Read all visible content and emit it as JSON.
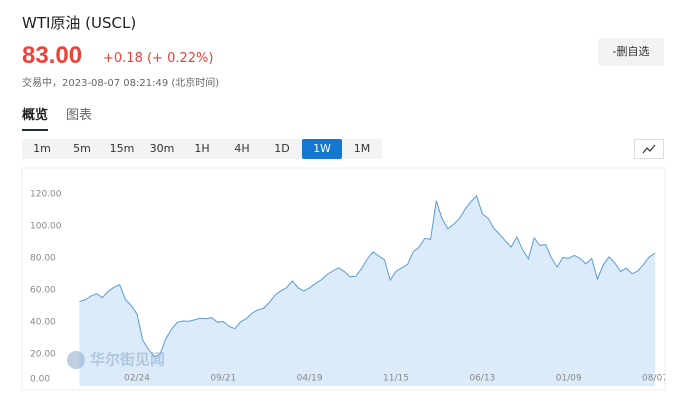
{
  "header": {
    "title": "WTI原油 (USCL)",
    "price": "83.00",
    "change": "+0.18 (+ 0.22%)",
    "status": "交易中，2023-08-07 08:21:49 (北京时间)",
    "watchlist_button": "-删自选"
  },
  "tabs": {
    "items": [
      "概览",
      "图表"
    ],
    "active": 0
  },
  "intervals": {
    "items": [
      "1m",
      "5m",
      "15m",
      "30m",
      "1H",
      "4H",
      "1D",
      "1W",
      "1M"
    ],
    "active": 7
  },
  "chart_data": {
    "type": "area",
    "watermark": "华尔街见闻",
    "color": "#5b9bd5",
    "fill": "#dcebfa",
    "categories": [
      null,
      null,
      null,
      null,
      null,
      null,
      null,
      null,
      null,
      null,
      "02/24",
      null,
      null,
      null,
      null,
      null,
      null,
      null,
      null,
      null,
      null,
      null,
      null,
      null,
      null,
      "09/21",
      null,
      null,
      null,
      null,
      null,
      null,
      null,
      null,
      null,
      null,
      null,
      null,
      null,
      null,
      "04/19",
      null,
      null,
      null,
      null,
      null,
      null,
      null,
      null,
      null,
      null,
      null,
      null,
      null,
      null,
      "11/15",
      null,
      null,
      null,
      null,
      null,
      null,
      null,
      null,
      null,
      null,
      null,
      null,
      null,
      null,
      "06/13",
      null,
      null,
      null,
      null,
      null,
      null,
      null,
      null,
      null,
      null,
      null,
      null,
      null,
      null,
      "01/09",
      null,
      null,
      null,
      null,
      null,
      null,
      null,
      null,
      null,
      null,
      null,
      null,
      null,
      null,
      "08/07"
    ],
    "values": [
      52.8,
      53.8,
      56.2,
      57.7,
      55.2,
      59.2,
      61.7,
      63.3,
      54.2,
      50.3,
      45.0,
      28.7,
      22.8,
      18.3,
      19.8,
      29.4,
      35.5,
      39.8,
      40.6,
      40.5,
      41.3,
      42.3,
      42.0,
      42.7,
      39.8,
      40.3,
      37.3,
      35.8,
      40.1,
      42.1,
      45.5,
      47.6,
      48.5,
      52.2,
      56.9,
      59.5,
      61.5,
      65.6,
      61.4,
      59.3,
      61.4,
      64.0,
      66.3,
      69.6,
      71.9,
      73.9,
      71.6,
      68.3,
      68.5,
      73.3,
      79.3,
      83.8,
      81.3,
      78.9,
      66.2,
      71.7,
      73.8,
      76.0,
      83.8,
      86.8,
      92.3,
      91.6,
      115.7,
      104.7,
      98.3,
      101.0,
      104.7,
      110.5,
      115.1,
      118.9,
      107.6,
      104.8,
      98.6,
      94.7,
      90.8,
      86.9,
      93.1,
      85.1,
      79.5,
      92.6,
      87.9,
      88.4,
      80.1,
      74.3,
      80.3,
      79.9,
      81.6,
      79.7,
      76.3,
      79.7,
      66.7,
      75.7,
      80.7,
      77.0,
      71.6,
      73.7,
      70.2,
      71.8,
      76.0,
      80.6,
      83.0
    ],
    "ylim": [
      0,
      135
    ],
    "yticks": [
      {
        "value": 0,
        "label": "0.00"
      },
      {
        "value": 20,
        "label": "20.00"
      },
      {
        "value": 40,
        "label": "40.00"
      },
      {
        "value": 60,
        "label": "60.00"
      },
      {
        "value": 80,
        "label": "80.00"
      },
      {
        "value": 100,
        "label": "100.00"
      },
      {
        "value": 120,
        "label": "120.00"
      }
    ]
  }
}
